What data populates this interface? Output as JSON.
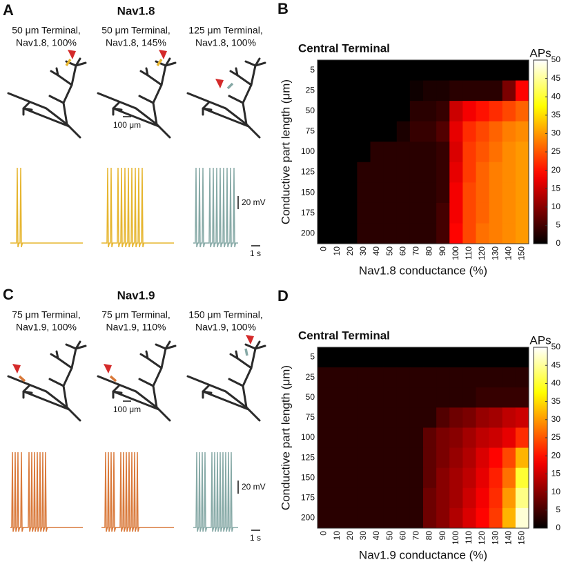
{
  "panels": [
    {
      "label": "A",
      "title": "Nav1.8",
      "captions": [
        [
          "50 μm Terminal,",
          "Nav1.8, 100%"
        ],
        [
          "50 μm Terminal,",
          "Nav1.8, 145%"
        ],
        [
          "125 μm Terminal,",
          "Nav1.8, 100%"
        ]
      ],
      "scale_length": "100 μm",
      "scale_voltage": "20 mV",
      "scale_time": "1 s"
    },
    {
      "label": "C",
      "title": "Nav1.9",
      "captions": [
        [
          "75 μm Terminal,",
          "Nav1.9, 100%"
        ],
        [
          "75 μm Terminal,",
          "Nav1.9, 110%"
        ],
        [
          "150 μm Terminal,",
          "Nav1.9, 100%"
        ]
      ],
      "scale_length": "100 μm",
      "scale_voltage": "20 mV",
      "scale_time": "1 s"
    }
  ],
  "chart_data": [
    {
      "type": "heatmap",
      "label": "B",
      "title": "Central Terminal",
      "x_label": "Nav1.8 conductance (%)",
      "y_label": "Conductive part length (μm)",
      "x": [
        0,
        10,
        20,
        30,
        40,
        50,
        60,
        70,
        80,
        90,
        100,
        110,
        120,
        130,
        140,
        150
      ],
      "y": [
        5,
        25,
        50,
        75,
        100,
        125,
        150,
        175,
        200
      ],
      "values": [
        [
          0,
          0,
          0,
          0,
          0,
          0,
          0,
          0,
          0,
          0,
          0,
          0,
          0,
          0,
          0,
          0
        ],
        [
          0,
          0,
          0,
          0,
          0,
          0,
          0,
          1,
          2,
          2,
          3,
          3,
          3,
          3,
          9,
          19
        ],
        [
          0,
          0,
          0,
          0,
          0,
          0,
          0,
          3,
          3,
          4,
          15,
          18,
          20,
          22,
          24,
          26
        ],
        [
          0,
          0,
          0,
          0,
          0,
          0,
          2,
          4,
          4,
          6,
          17,
          22,
          24,
          26,
          28,
          29
        ],
        [
          0,
          0,
          0,
          0,
          3,
          3,
          3,
          3,
          3,
          4,
          16,
          23,
          25,
          27,
          29,
          30
        ],
        [
          0,
          0,
          0,
          3,
          3,
          3,
          3,
          3,
          3,
          4,
          17,
          23,
          26,
          28,
          29,
          30
        ],
        [
          0,
          0,
          0,
          3,
          3,
          3,
          3,
          3,
          3,
          4,
          18,
          24,
          26,
          28,
          29,
          30
        ],
        [
          0,
          0,
          0,
          3,
          3,
          3,
          3,
          3,
          3,
          5,
          18,
          24,
          26,
          28,
          29,
          30
        ],
        [
          0,
          0,
          0,
          3,
          3,
          3,
          3,
          3,
          3,
          5,
          19,
          24,
          27,
          28,
          29,
          30
        ]
      ],
      "colorbar_label": "APs",
      "zlim": [
        0,
        50
      ],
      "zticks": [
        0,
        5,
        10,
        15,
        20,
        25,
        30,
        35,
        40,
        45,
        50
      ],
      "colormap": "hot"
    },
    {
      "type": "heatmap",
      "label": "D",
      "title": "Central Terminal",
      "x_label": "Nav1.9 conductance (%)",
      "y_label": "Conductive part length (μm)",
      "x": [
        0,
        10,
        20,
        30,
        40,
        50,
        60,
        70,
        80,
        90,
        100,
        110,
        120,
        130,
        140,
        150
      ],
      "y": [
        5,
        25,
        50,
        75,
        100,
        125,
        150,
        175,
        200
      ],
      "values": [
        [
          0,
          0,
          0,
          0,
          0,
          0,
          0,
          0,
          0,
          0,
          0,
          0,
          0,
          0,
          0,
          0
        ],
        [
          3,
          3,
          3,
          3,
          3,
          3,
          3,
          3,
          3,
          3,
          3,
          3,
          3,
          3,
          3,
          3
        ],
        [
          3,
          3,
          3,
          3,
          3,
          3,
          3,
          3,
          3,
          3,
          3,
          3,
          4,
          4,
          4,
          4
        ],
        [
          3,
          3,
          3,
          3,
          3,
          3,
          3,
          3,
          3,
          6,
          8,
          9,
          11,
          12,
          14,
          15
        ],
        [
          3,
          3,
          3,
          3,
          3,
          3,
          3,
          3,
          7,
          9,
          10,
          12,
          14,
          15,
          17,
          22
        ],
        [
          3,
          3,
          3,
          3,
          3,
          3,
          3,
          3,
          7,
          9,
          11,
          13,
          16,
          19,
          24,
          32
        ],
        [
          3,
          3,
          3,
          3,
          3,
          3,
          3,
          3,
          7,
          10,
          12,
          14,
          17,
          21,
          27,
          40
        ],
        [
          3,
          3,
          3,
          3,
          3,
          3,
          3,
          3,
          8,
          10,
          12,
          15,
          18,
          22,
          30,
          44
        ],
        [
          3,
          3,
          3,
          3,
          3,
          3,
          3,
          3,
          8,
          10,
          13,
          16,
          19,
          23,
          32,
          48
        ]
      ],
      "colorbar_label": "APs",
      "zlim": [
        0,
        50
      ],
      "zticks": [
        0,
        5,
        10,
        15,
        20,
        25,
        30,
        35,
        40,
        45,
        50
      ],
      "colormap": "hot"
    }
  ]
}
